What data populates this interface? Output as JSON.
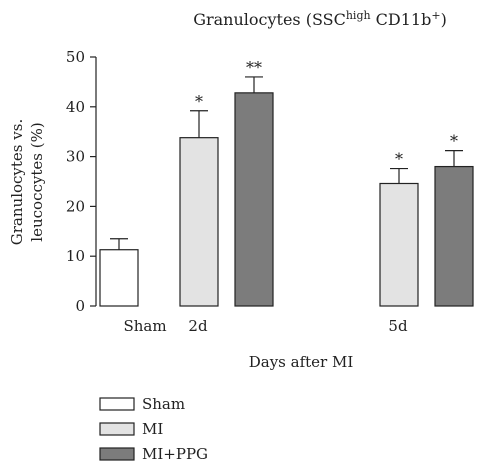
{
  "chart_data": {
    "type": "bar",
    "title": {
      "main": "Granulocytes (SSC",
      "sup1": "high",
      "mid": " CD11b",
      "sup2": "+",
      "end": ")"
    },
    "ylabel": [
      "Granulocytes vs.",
      "leucoccytes (%)"
    ],
    "xlabel": "Days after MI",
    "ylim": [
      0,
      50
    ],
    "yticks": [
      0,
      10,
      20,
      30,
      40,
      50
    ],
    "groups": [
      "Sham",
      "2d",
      "5d"
    ],
    "bars": [
      {
        "series": "Sham",
        "group": "Sham",
        "value": 11.3,
        "error": 2.2,
        "sig": ""
      },
      {
        "series": "MI",
        "group": "2d",
        "value": 33.8,
        "error": 5.4,
        "sig": "*"
      },
      {
        "series": "MI+PPG",
        "group": "2d",
        "value": 42.8,
        "error": 3.2,
        "sig": "**"
      },
      {
        "series": "MI",
        "group": "5d",
        "value": 24.6,
        "error": 3.0,
        "sig": "*"
      },
      {
        "series": "MI+PPG",
        "group": "5d",
        "value": 28.0,
        "error": 3.2,
        "sig": "*"
      }
    ],
    "series": [
      {
        "name": "Sham",
        "color": "#ffffff"
      },
      {
        "name": "MI",
        "color": "#e3e3e3"
      },
      {
        "name": "MI+PPG",
        "color": "#7c7c7c"
      }
    ],
    "legend_position": "bottom-left",
    "grid": false
  }
}
